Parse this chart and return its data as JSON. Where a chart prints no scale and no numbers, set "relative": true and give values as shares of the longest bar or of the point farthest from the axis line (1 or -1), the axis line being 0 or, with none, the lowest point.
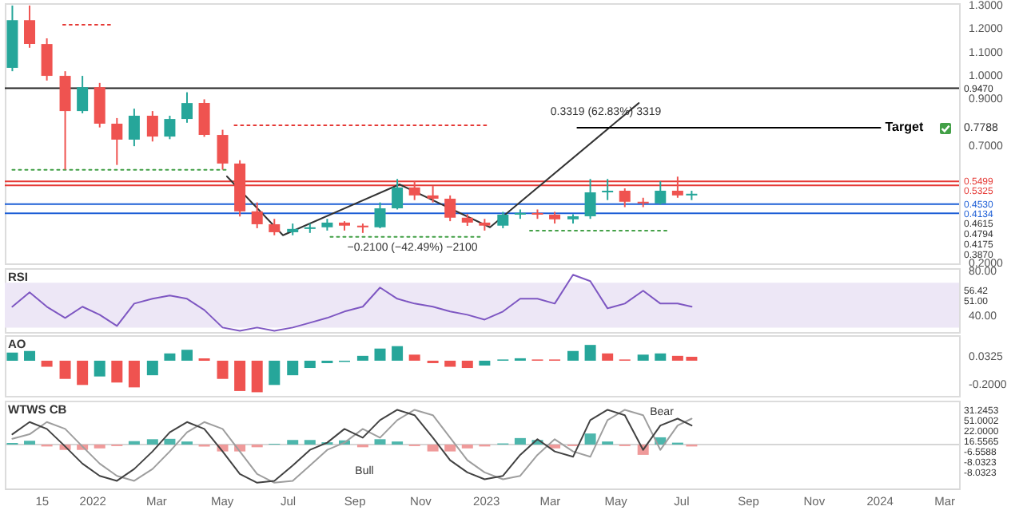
{
  "chart_data": [
    {
      "type": "candlestick",
      "x": [
        "2021-10-19",
        "2021-11-04",
        "2021-11-20",
        "2021-12-07",
        "2021-12-23",
        "2022-01-08",
        "2022-01-24",
        "2022-02-09",
        "2022-02-26",
        "2022-03-14",
        "2022-03-30",
        "2022-04-15",
        "2022-05-02",
        "2022-05-18",
        "2022-06-03",
        "2022-06-19",
        "2022-07-06",
        "2022-07-22",
        "2022-08-07",
        "2022-08-23",
        "2022-09-09",
        "2022-09-25",
        "2022-10-11",
        "2022-10-27",
        "2022-11-13",
        "2022-11-29",
        "2022-12-15",
        "2022-12-31",
        "2023-01-17",
        "2023-02-02",
        "2023-02-18",
        "2023-03-06",
        "2023-03-23",
        "2023-04-08",
        "2023-04-24",
        "2023-05-10",
        "2023-05-27",
        "2023-06-12",
        "2023-06-28",
        "2023-07-11"
      ],
      "ohlc": [
        [
          1.034,
          1.3,
          1.02,
          1.238
        ],
        [
          1.238,
          1.3,
          1.12,
          1.136
        ],
        [
          1.136,
          1.16,
          0.98,
          1.0
        ],
        [
          1.0,
          1.02,
          0.6,
          0.85
        ],
        [
          0.85,
          1.0,
          0.84,
          0.952
        ],
        [
          0.952,
          0.97,
          0.78,
          0.796
        ],
        [
          0.796,
          0.82,
          0.62,
          0.728
        ],
        [
          0.728,
          0.86,
          0.7,
          0.83
        ],
        [
          0.83,
          0.85,
          0.72,
          0.741
        ],
        [
          0.741,
          0.83,
          0.73,
          0.816
        ],
        [
          0.816,
          0.93,
          0.8,
          0.884
        ],
        [
          0.884,
          0.9,
          0.74,
          0.748
        ],
        [
          0.748,
          0.77,
          0.6,
          0.626
        ],
        [
          0.626,
          0.64,
          0.4,
          0.422
        ],
        [
          0.422,
          0.46,
          0.35,
          0.367
        ],
        [
          0.367,
          0.39,
          0.32,
          0.333
        ],
        [
          0.333,
          0.37,
          0.32,
          0.347
        ],
        [
          0.347,
          0.37,
          0.33,
          0.354
        ],
        [
          0.354,
          0.39,
          0.34,
          0.374
        ],
        [
          0.374,
          0.38,
          0.34,
          0.361
        ],
        [
          0.361,
          0.37,
          0.33,
          0.354
        ],
        [
          0.354,
          0.46,
          0.35,
          0.435
        ],
        [
          0.435,
          0.56,
          0.43,
          0.524
        ],
        [
          0.524,
          0.55,
          0.47,
          0.49
        ],
        [
          0.49,
          0.53,
          0.46,
          0.476
        ],
        [
          0.476,
          0.49,
          0.38,
          0.395
        ],
        [
          0.395,
          0.41,
          0.36,
          0.374
        ],
        [
          0.374,
          0.39,
          0.34,
          0.361
        ],
        [
          0.361,
          0.42,
          0.35,
          0.408
        ],
        [
          0.408,
          0.43,
          0.39,
          0.415
        ],
        [
          0.415,
          0.43,
          0.39,
          0.408
        ],
        [
          0.408,
          0.42,
          0.37,
          0.388
        ],
        [
          0.388,
          0.41,
          0.37,
          0.401
        ],
        [
          0.401,
          0.56,
          0.39,
          0.503
        ],
        [
          0.503,
          0.56,
          0.47,
          0.51
        ],
        [
          0.51,
          0.52,
          0.44,
          0.463
        ],
        [
          0.463,
          0.48,
          0.44,
          0.456
        ],
        [
          0.456,
          0.55,
          0.45,
          0.51
        ],
        [
          0.51,
          0.57,
          0.48,
          0.49
        ],
        [
          0.49,
          0.51,
          0.47,
          0.497
        ]
      ],
      "xlim": [
        "2021-10-12",
        "2024-03-15"
      ],
      "ylim": [
        0.2,
        1.31
      ],
      "yticks": [
        {
          "value": 0.2,
          "label": "0.2000"
        },
        {
          "value": 0.7,
          "label": "0.7000"
        },
        {
          "value": 0.9,
          "label": "0.9000"
        },
        {
          "value": 1.0,
          "label": "1.0000"
        },
        {
          "value": 1.1,
          "label": "1.1000"
        },
        {
          "value": 1.2,
          "label": "1.2000"
        },
        {
          "value": 1.3,
          "label": "1.3000"
        }
      ],
      "tick_labels": "y",
      "ref_lines": [
        {
          "axis": "y",
          "value": 0.947,
          "label": "0.9470",
          "color": "#222222"
        },
        {
          "axis": "y",
          "value": 0.5499,
          "label": "0.5499",
          "color": "#e53935"
        },
        {
          "axis": "y",
          "value": 0.5325,
          "label": "0.5325",
          "color": "#e53935"
        },
        {
          "axis": "y",
          "value": 0.453,
          "label": "0.4530",
          "color": "#1e5fd6"
        },
        {
          "axis": "y",
          "value": 0.4134,
          "label": "0.4134",
          "color": "#1e5fd6"
        }
      ],
      "series": [
        {
          "type": "line",
          "x": [
            "2021-12-05",
            "2022-01-20"
          ],
          "values": [
            1.218,
            1.218
          ],
          "color": "#e53935",
          "line_style": "dotted"
        },
        {
          "type": "line",
          "x": [
            "2022-05-13",
            "2023-01-05"
          ],
          "values": [
            0.789,
            0.789
          ],
          "color": "#e53935",
          "line_style": "dotted"
        },
        {
          "type": "line",
          "x": [
            "2021-10-19",
            "2022-05-06"
          ],
          "values": [
            0.599,
            0.599
          ],
          "color": "#43a047",
          "line_style": "dotted"
        },
        {
          "type": "line",
          "x": [
            "2022-08-10",
            "2022-12-29"
          ],
          "values": [
            0.313,
            0.313
          ],
          "color": "#43a047",
          "line_style": "dotted"
        },
        {
          "type": "line",
          "x": [
            "2023-02-11",
            "2023-06-21"
          ],
          "values": [
            0.34,
            0.34
          ],
          "color": "#43a047",
          "line_style": "dotted"
        },
        {
          "type": "line",
          "x": [
            "2022-05-06",
            "2022-06-27",
            "2022-10-13",
            "2023-01-05",
            "2023-05-23"
          ],
          "values": [
            0.571,
            0.32,
            0.537,
            0.354,
            0.884
          ],
          "color": "#333333",
          "line_style": "solid"
        },
        {
          "type": "line",
          "name": "Target",
          "x": [
            "2023-03-27",
            "2024-01-02"
          ],
          "values": [
            0.7788,
            0.7788
          ],
          "color": "#000000",
          "line_style": "solid"
        }
      ],
      "annotations": [
        "−0.2100 (−42.49%) −2100",
        "0.3319 (62.83%) 3319",
        "0.7788",
        "0.4615",
        "0.4794",
        "0.4175",
        "0.3870"
      ]
    },
    {
      "type": "line",
      "title": "RSI",
      "x": [
        "2021-10-19",
        "2021-11-04",
        "2021-11-20",
        "2021-12-07",
        "2021-12-23",
        "2022-01-08",
        "2022-01-24",
        "2022-02-09",
        "2022-02-26",
        "2022-03-14",
        "2022-03-30",
        "2022-04-15",
        "2022-05-02",
        "2022-05-18",
        "2022-06-03",
        "2022-06-19",
        "2022-07-06",
        "2022-07-22",
        "2022-08-07",
        "2022-08-23",
        "2022-09-09",
        "2022-09-25",
        "2022-10-11",
        "2022-10-27",
        "2022-11-13",
        "2022-11-29",
        "2022-12-15",
        "2022-12-31",
        "2023-01-17",
        "2023-02-02",
        "2023-02-18",
        "2023-03-06",
        "2023-03-23",
        "2023-04-08",
        "2023-04-24",
        "2023-05-10",
        "2023-05-27",
        "2023-06-12",
        "2023-06-28",
        "2023-07-11"
      ],
      "xlim": [
        "2021-10-12",
        "2024-03-15"
      ],
      "ylim": [
        26,
        83
      ],
      "yticks": [
        {
          "value": 40,
          "label": "40.00"
        },
        {
          "value": 80,
          "label": "80.00"
        }
      ],
      "tick_labels": "y",
      "bands": [
        {
          "axis": "y",
          "from": 30,
          "to": 70,
          "color": "#ede7f6"
        }
      ],
      "series": [
        {
          "color": "#7e57c2",
          "values": [
            48.6,
            61.4,
            48.6,
            38.6,
            48.6,
            41.4,
            31.4,
            51.4,
            55.7,
            58.6,
            55.7,
            45.7,
            30,
            27.1,
            30,
            27.1,
            30,
            34.3,
            38.6,
            44.3,
            48.6,
            65.7,
            55.7,
            51.4,
            48.6,
            44.3,
            41.4,
            37.1,
            44.3,
            55.7,
            55.7,
            51.4,
            77.1,
            71.4,
            47.1,
            51.4,
            62.9,
            51.4,
            51.4,
            48.6
          ]
        }
      ],
      "annotations": [
        "56.42",
        "51.00"
      ]
    },
    {
      "type": "bar",
      "title": "AO",
      "x": [
        "2021-10-19",
        "2021-11-04",
        "2021-11-20",
        "2021-12-07",
        "2021-12-23",
        "2022-01-08",
        "2022-01-24",
        "2022-02-09",
        "2022-02-26",
        "2022-03-14",
        "2022-03-30",
        "2022-04-15",
        "2022-05-02",
        "2022-05-18",
        "2022-06-03",
        "2022-06-19",
        "2022-07-06",
        "2022-07-22",
        "2022-08-07",
        "2022-08-23",
        "2022-09-09",
        "2022-09-25",
        "2022-10-11",
        "2022-10-27",
        "2022-11-13",
        "2022-11-29",
        "2022-12-15",
        "2022-12-31",
        "2023-01-17",
        "2023-02-02",
        "2023-02-18",
        "2023-03-06",
        "2023-03-23",
        "2023-04-08",
        "2023-04-24",
        "2023-05-10",
        "2023-05-27",
        "2023-06-12",
        "2023-06-28",
        "2023-07-11"
      ],
      "xlim": [
        "2021-10-12",
        "2024-03-15"
      ],
      "ylim": [
        -0.29,
        0.21
      ],
      "yticks": [
        {
          "value": -0.2,
          "label": "-0.2000"
        },
        {
          "value": 0.0325,
          "label": "0.0325"
        }
      ],
      "tick_labels": "y",
      "series": [
        {
          "values": [
            0.067,
            0.08,
            -0.05,
            -0.15,
            -0.2,
            -0.13,
            -0.18,
            -0.22,
            -0.12,
            0.06,
            0.09,
            0.02,
            -0.15,
            -0.25,
            -0.26,
            -0.2,
            -0.12,
            -0.06,
            -0.02,
            -0.01,
            0.04,
            0.1,
            0.12,
            0.05,
            -0.02,
            -0.05,
            -0.06,
            -0.04,
            0.01,
            0.02,
            0.01,
            0.01,
            0.08,
            0.13,
            0.06,
            0.01,
            0.05,
            0.06,
            0.04,
            0.0325
          ],
          "colors": [
            "#26a69a",
            "#26a69a",
            "#ef5350",
            "#ef5350",
            "#ef5350",
            "#26a69a",
            "#ef5350",
            "#ef5350",
            "#26a69a",
            "#26a69a",
            "#26a69a",
            "#ef5350",
            "#ef5350",
            "#ef5350",
            "#ef5350",
            "#26a69a",
            "#26a69a",
            "#26a69a",
            "#26a69a",
            "#26a69a",
            "#26a69a",
            "#26a69a",
            "#26a69a",
            "#ef5350",
            "#ef5350",
            "#ef5350",
            "#ef5350",
            "#26a69a",
            "#26a69a",
            "#26a69a",
            "#ef5350",
            "#ef5350",
            "#26a69a",
            "#26a69a",
            "#ef5350",
            "#ef5350",
            "#26a69a",
            "#26a69a",
            "#ef5350",
            "#ef5350"
          ]
        }
      ]
    },
    {
      "type": "line",
      "title": "WTWS CB",
      "relative": true,
      "x": [
        "2021-10-19",
        "2021-11-04",
        "2021-11-20",
        "2021-12-07",
        "2021-12-23",
        "2022-01-08",
        "2022-01-24",
        "2022-02-09",
        "2022-02-26",
        "2022-03-14",
        "2022-03-30",
        "2022-04-15",
        "2022-05-02",
        "2022-05-18",
        "2022-06-03",
        "2022-06-19",
        "2022-07-06",
        "2022-07-22",
        "2022-08-07",
        "2022-08-23",
        "2022-09-09",
        "2022-09-25",
        "2022-10-11",
        "2022-10-27",
        "2022-11-13",
        "2022-11-29",
        "2022-12-15",
        "2022-12-31",
        "2023-01-17",
        "2023-02-02",
        "2023-02-18",
        "2023-03-06",
        "2023-03-23",
        "2023-04-08",
        "2023-04-24",
        "2023-05-10",
        "2023-05-27",
        "2023-06-12",
        "2023-06-28",
        "2023-07-11"
      ],
      "xlim": [
        "2021-10-12",
        "2024-03-15"
      ],
      "xticks": [
        {
          "value": "2021-11-15",
          "label": "15"
        },
        {
          "value": "2022-01-01",
          "label": "2022"
        },
        {
          "value": "2022-03-01",
          "label": "Mar"
        },
        {
          "value": "2022-05-01",
          "label": "May"
        },
        {
          "value": "2022-07-01",
          "label": "Jul"
        },
        {
          "value": "2022-09-01",
          "label": "Sep"
        },
        {
          "value": "2022-11-01",
          "label": "Nov"
        },
        {
          "value": "2023-01-01",
          "label": "2023"
        },
        {
          "value": "2023-03-01",
          "label": "Mar"
        },
        {
          "value": "2023-05-01",
          "label": "May"
        },
        {
          "value": "2023-07-01",
          "label": "Jul"
        },
        {
          "value": "2023-09-01",
          "label": "Sep"
        },
        {
          "value": "2023-11-01",
          "label": "Nov"
        },
        {
          "value": "2024-01-01",
          "label": "2024"
        },
        {
          "value": "2024-03-01",
          "label": "Mar"
        }
      ],
      "tick_labels": "x",
      "series": [
        {
          "type": "bar",
          "values": [
            0.04,
            0.1,
            -0.05,
            -0.14,
            -0.14,
            -0.1,
            -0.04,
            0.09,
            0.14,
            0.15,
            0.08,
            -0.05,
            -0.18,
            -0.18,
            -0.07,
            0.02,
            0.12,
            0.12,
            0.06,
            0.11,
            -0.07,
            0.14,
            0.08,
            -0.04,
            -0.18,
            -0.18,
            -0.1,
            -0.05,
            0.03,
            0.17,
            0.12,
            -0.1,
            -0.04,
            0.29,
            0.08,
            -0.04,
            -0.27,
            0.19,
            0.05,
            -0.05
          ],
          "colors": [
            "#4db6ac",
            "#4db6ac",
            "#ef9a9a",
            "#ef9a9a",
            "#ef9a9a",
            "#ef9a9a",
            "#ef9a9a",
            "#4db6ac",
            "#4db6ac",
            "#4db6ac",
            "#4db6ac",
            "#ef9a9a",
            "#ef9a9a",
            "#ef9a9a",
            "#ef9a9a",
            "#4db6ac",
            "#4db6ac",
            "#4db6ac",
            "#4db6ac",
            "#4db6ac",
            "#ef9a9a",
            "#4db6ac",
            "#4db6ac",
            "#ef9a9a",
            "#ef9a9a",
            "#ef9a9a",
            "#ef9a9a",
            "#ef9a9a",
            "#4db6ac",
            "#4db6ac",
            "#4db6ac",
            "#ef9a9a",
            "#ef9a9a",
            "#4db6ac",
            "#4db6ac",
            "#ef9a9a",
            "#ef9a9a",
            "#4db6ac",
            "#4db6ac",
            "#ef9a9a"
          ]
        },
        {
          "color": "#9e9e9e",
          "values": [
            0.15,
            0.27,
            0.59,
            0.41,
            -0.05,
            -0.5,
            -0.82,
            -0.95,
            -0.64,
            -0.18,
            0.32,
            0.59,
            0.41,
            -0.18,
            -0.77,
            -1,
            -0.95,
            -0.55,
            -0.14,
            0.05,
            0.41,
            0.18,
            0.64,
            0.91,
            0.77,
            0.18,
            -0.41,
            -0.73,
            -0.91,
            -0.82,
            -0.27,
            0.14,
            -0.18,
            -0.32,
            0.64,
            0.91,
            0.77,
            -0.14,
            0.5,
            0.68
          ]
        },
        {
          "color": "#424242",
          "values": [
            0.27,
            0.59,
            0.41,
            -0.05,
            -0.5,
            -0.82,
            -0.95,
            -0.64,
            -0.18,
            0.32,
            0.59,
            0.41,
            -0.18,
            -0.77,
            -1,
            -0.95,
            -0.55,
            -0.14,
            0.05,
            0.41,
            0.18,
            0.64,
            0.91,
            0.77,
            0.18,
            -0.41,
            -0.73,
            -0.91,
            -0.82,
            -0.27,
            0.14,
            -0.18,
            -0.32,
            0.64,
            0.91,
            0.77,
            -0.14,
            0.5,
            0.68,
            0.5
          ]
        }
      ],
      "annotations": [
        "Bull",
        "Bear",
        "31.2453",
        "51.0002",
        "22.0000",
        "16.5565",
        "-6.5588",
        "-8.0323",
        "-8.0323"
      ]
    }
  ]
}
